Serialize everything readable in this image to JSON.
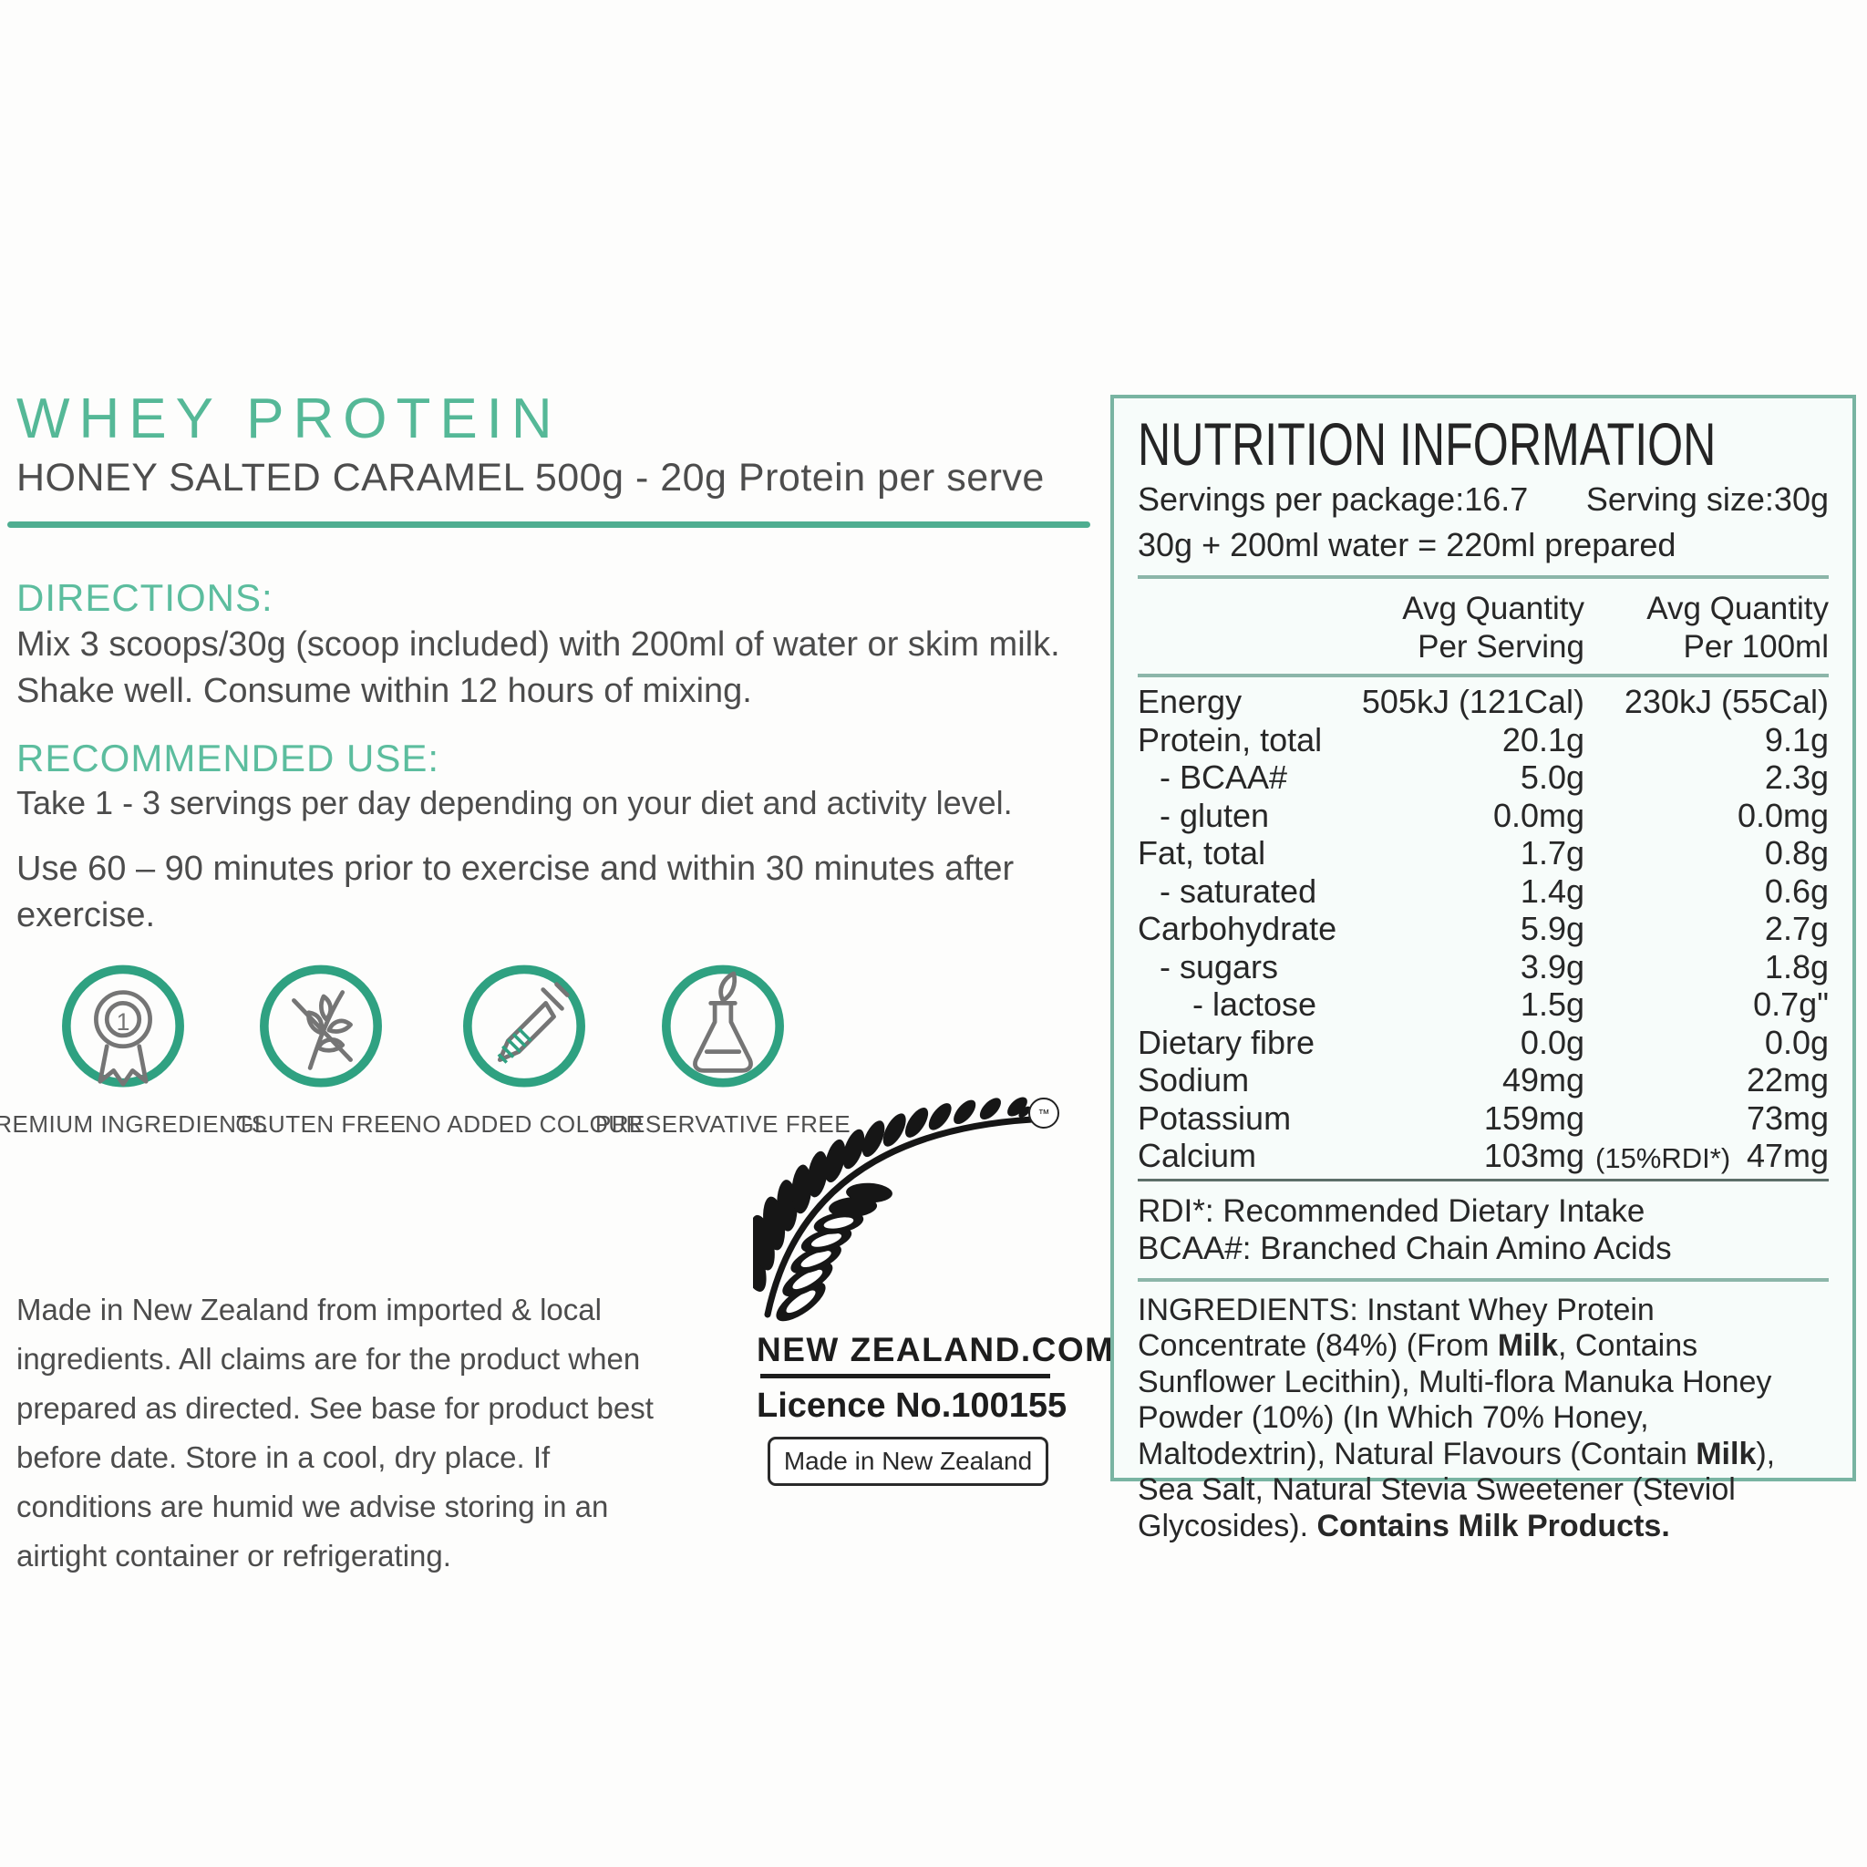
{
  "brand": {
    "title": "WHEY PROTEIN",
    "subtitle": "HONEY SALTED CARAMEL 500g - 20g Protein per serve"
  },
  "directions": {
    "heading": "DIRECTIONS:",
    "body": "Mix 3 scoops/30g (scoop included) with 200ml of water or skim milk. Shake well. Consume within 12 hours of mixing."
  },
  "recommended_use": {
    "heading": "RECOMMENDED USE:",
    "line1": "Take 1 - 3 servings per day depending on your diet and activity level.",
    "line2": "Use 60 – 90 minutes prior to exercise and within 30 minutes after exercise."
  },
  "badges": [
    {
      "icon": "award-ribbon-icon",
      "label": "PREMIUM INGREDIENTS"
    },
    {
      "icon": "wheat-crossed-icon",
      "label": "GLUTEN FREE"
    },
    {
      "icon": "dropper-icon",
      "label": "NO ADDED COLOUR"
    },
    {
      "icon": "flask-icon",
      "label": "PRESERVATIVE FREE"
    }
  ],
  "storage_note": "Made in New Zealand from imported & local ingredients. All claims are for the product when prepared as directed. See base for product best before date. Store in a cool, dry place. If conditions are humid we advise storing in an airtight container or refrigerating.",
  "nz_mark": {
    "site": "NEW ZEALAND.COM",
    "licence": "Licence No.100155",
    "made_in": "Made in New Zealand",
    "trademark": "™"
  },
  "nutrition": {
    "title": "NUTRITION INFORMATION",
    "servings_per_package": "Servings per package:16.7",
    "serving_size": "Serving size:30g",
    "prepared": "30g + 200ml water = 220ml prepared",
    "col_serving": [
      "Avg Quantity",
      "Per Serving"
    ],
    "col_100ml": [
      "Avg Quantity",
      "Per 100ml"
    ],
    "rows": [
      {
        "label": "Energy",
        "serve": "505kJ (121Cal)",
        "per100": "230kJ (55Cal)",
        "indent": 0
      },
      {
        "label": "Protein, total",
        "serve": "20.1g",
        "per100": "9.1g",
        "indent": 0
      },
      {
        "label": "- BCAA#",
        "serve": "5.0g",
        "per100": "2.3g",
        "indent": 1
      },
      {
        "label": "- gluten",
        "serve": "0.0mg",
        "per100": "0.0mg",
        "indent": 1
      },
      {
        "label": "Fat, total",
        "serve": "1.7g",
        "per100": "0.8g",
        "indent": 0
      },
      {
        "label": "- saturated",
        "serve": "1.4g",
        "per100": "0.6g",
        "indent": 1
      },
      {
        "label": "Carbohydrate",
        "serve": "5.9g",
        "per100": "2.7g",
        "indent": 0
      },
      {
        "label": "- sugars",
        "serve": "3.9g",
        "per100": "1.8g",
        "indent": 1
      },
      {
        "label": "- lactose",
        "serve": "1.5g",
        "per100": "0.7g\"",
        "indent": 2
      },
      {
        "label": "Dietary fibre",
        "serve": "0.0g",
        "per100": "0.0g",
        "indent": 0
      },
      {
        "label": "Sodium",
        "serve": "49mg",
        "per100": "22mg",
        "indent": 0
      },
      {
        "label": "Potassium",
        "serve": "159mg",
        "per100": "73mg",
        "indent": 0
      },
      {
        "label": "Calcium",
        "serve": "103mg",
        "serve_note": "(15%RDI*)",
        "per100": "47mg",
        "indent": 0
      }
    ],
    "footnotes": [
      "RDI*: Recommended Dietary Intake",
      "BCAA#: Branched Chain Amino Acids"
    ],
    "ingredients_segments": [
      {
        "t": "INGREDIENTS: Instant Whey Protein Concentrate (84%) (From ",
        "b": false
      },
      {
        "t": "Milk",
        "b": true
      },
      {
        "t": ", Contains Sunflower Lecithin), Multi-flora Manuka Honey Powder (10%) (In Which 70% Honey, Maltodextrin), Natural Flavours (Contain ",
        "b": false
      },
      {
        "t": "Milk",
        "b": true
      },
      {
        "t": "), Sea Salt, Natural Stevia Sweetener (Steviol Glycosides). ",
        "b": false
      },
      {
        "t": "Contains Milk Products.",
        "b": true
      }
    ]
  },
  "colors": {
    "accent_green": "#55b897",
    "rule_green": "#4fae91",
    "badge_ring_green": "#2fa181",
    "panel_border": "#79b4a2",
    "panel_bg": "#f7fcfa",
    "ink": "#272727",
    "body_text": "#4c4c4c"
  }
}
